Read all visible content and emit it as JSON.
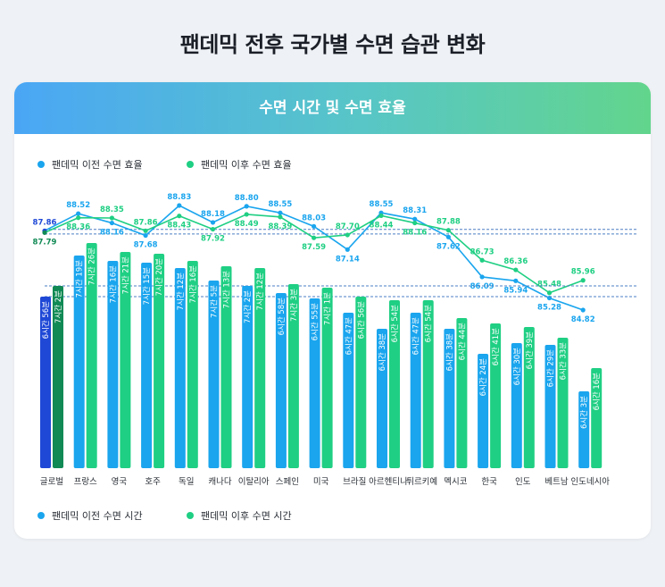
{
  "page": {
    "title": "팬데믹 전후 국가별 수면 습관 변화",
    "card_title": "수면 시간 및 수면 효율"
  },
  "colors": {
    "before": "#1aa5ee",
    "after": "#1fcf83",
    "global_before": "#1f48d6",
    "global_after": "#118a55",
    "bar_label": "#ffffff",
    "ref_line": "#4b7fc4"
  },
  "chart_data": [
    {
      "type": "line",
      "categories": [
        "글로벌",
        "프랑스",
        "영국",
        "호주",
        "독일",
        "캐나다",
        "이탈리아",
        "스페인",
        "미국",
        "브라질",
        "아르헨티나",
        "튀르키예",
        "멕시코",
        "한국",
        "인도",
        "베트남",
        "인도네시아"
      ],
      "series": [
        {
          "name": "팬데믹 이전 수면 효율",
          "values": [
            87.86,
            88.52,
            88.16,
            87.68,
            88.83,
            88.18,
            88.8,
            88.55,
            88.03,
            87.14,
            88.55,
            88.31,
            87.62,
            86.09,
            85.94,
            85.28,
            84.82
          ]
        },
        {
          "name": "팬데믹 이후 수면 효율",
          "values": [
            87.79,
            88.36,
            88.35,
            87.86,
            88.43,
            87.92,
            88.49,
            88.39,
            87.59,
            87.7,
            88.44,
            88.16,
            87.88,
            86.73,
            86.36,
            85.48,
            85.96
          ]
        }
      ],
      "legend_position": "top-left",
      "grid": false
    },
    {
      "type": "bar",
      "categories": [
        "글로벌",
        "프랑스",
        "영국",
        "호주",
        "독일",
        "캐나다",
        "이탈리아",
        "스페인",
        "미국",
        "브라질",
        "아르헨티나",
        "튀르키예",
        "멕시코",
        "한국",
        "인도",
        "베트남",
        "인도네시아"
      ],
      "series": [
        {
          "name": "팬데믹 이전 수면 시간",
          "values": [
            416,
            439,
            436,
            435,
            432,
            425,
            422,
            418,
            415,
            407,
            398,
            407,
            398,
            384,
            390,
            389,
            363
          ],
          "labels": [
            "6시간 56분",
            "7시간 19분",
            "7시간 16분",
            "7시간 15분",
            "7시간 12분",
            "7시간 5분",
            "7시간 2분",
            "6시간 58분",
            "6시간 55분",
            "6시간 47분",
            "6시간 38분",
            "6시간 47분",
            "6시간 38분",
            "6시간 24분",
            "6시간 30분",
            "6시간 29분",
            "6시간 3분"
          ]
        },
        {
          "name": "팬데믹 이후 수면 시간",
          "values": [
            422,
            446,
            441,
            440,
            436,
            433,
            432,
            423,
            421,
            416,
            414,
            414,
            404,
            401,
            399,
            393,
            376
          ],
          "labels": [
            "7시간 2분",
            "7시간 26분",
            "7시간 21분",
            "7시간 20분",
            "7시간 16분",
            "7시간 13분",
            "7시간 12분",
            "7시간 3분",
            "7시간 1분",
            "6시간 56분",
            "6시간 54분",
            "6시간 54분",
            "6시간 44분",
            "6시간 41분",
            "6시간 39분",
            "6시간 33분",
            "6시간 16분"
          ]
        }
      ],
      "legend_position": "bottom-left",
      "grid": false
    }
  ]
}
